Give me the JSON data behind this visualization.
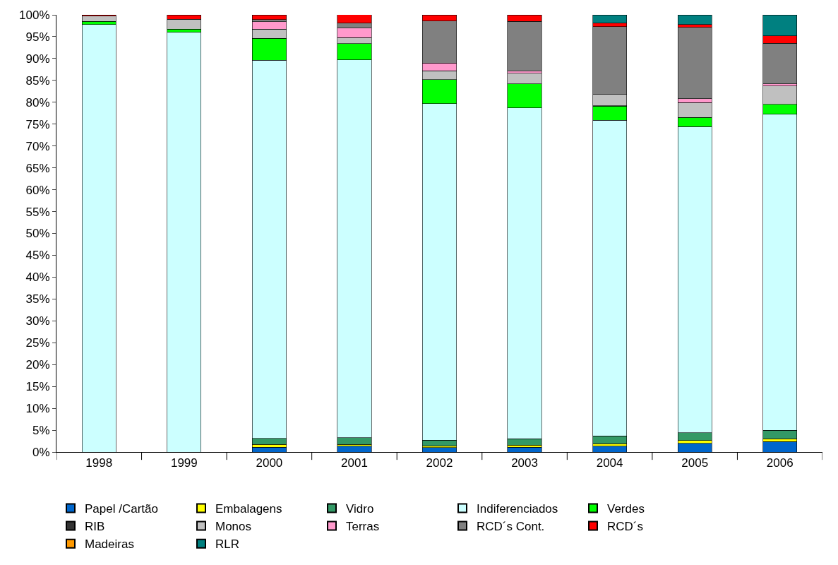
{
  "chart_data": {
    "type": "bar",
    "stacked": true,
    "categories": [
      "1998",
      "1999",
      "2000",
      "2001",
      "2002",
      "2003",
      "2004",
      "2005",
      "2006"
    ],
    "series": [
      {
        "name": "Papel /Cartão",
        "color": "#0066cc",
        "values": [
          null,
          null,
          1.1,
          1.3,
          1.0,
          1.1,
          1.3,
          2.0,
          2.4
        ]
      },
      {
        "name": "Embalagens",
        "color": "#ffff00",
        "values": [
          null,
          null,
          0.6,
          0.4,
          0.4,
          0.5,
          0.6,
          0.6,
          0.6
        ]
      },
      {
        "name": "Vidro",
        "color": "#339966",
        "values": [
          null,
          null,
          1.4,
          1.6,
          1.3,
          1.4,
          1.8,
          1.8,
          2.0
        ]
      },
      {
        "name": "Indiferenciados",
        "color": "#ccffff",
        "values": [
          97.8,
          96.0,
          86.5,
          86.4,
          77.0,
          75.7,
          72.2,
          70.0,
          72.3
        ]
      },
      {
        "name": "Verdes",
        "color": "#00ff00",
        "values": [
          0.7,
          0.7,
          5.0,
          3.7,
          5.5,
          5.5,
          3.2,
          2.1,
          2.2
        ]
      },
      {
        "name": "RIB",
        "color": "#333333",
        "values": [
          null,
          null,
          null,
          null,
          null,
          null,
          0.1,
          null,
          null
        ]
      },
      {
        "name": "Monos",
        "color": "#c0c0c0",
        "values": [
          1.2,
          2.3,
          2.1,
          1.4,
          2.0,
          2.4,
          2.6,
          3.4,
          4.2
        ]
      },
      {
        "name": "Terras",
        "color": "#ff99cc",
        "values": [
          null,
          null,
          1.7,
          2.2,
          1.8,
          0.5,
          null,
          0.9,
          0.5
        ]
      },
      {
        "name": "RCD´s Cont.",
        "color": "#808080",
        "values": [
          null,
          null,
          0.5,
          1.1,
          9.6,
          11.4,
          15.5,
          16.3,
          9.3
        ]
      },
      {
        "name": "RCD´s",
        "color": "#ff0000",
        "values": [
          0.3,
          1.0,
          1.1,
          2.0,
          1.4,
          1.5,
          0.8,
          0.7,
          1.7
        ]
      },
      {
        "name": "Madeiras",
        "color": "#ff9900",
        "values": [
          null,
          null,
          null,
          null,
          null,
          null,
          null,
          null,
          null
        ]
      },
      {
        "name": "RLR",
        "color": "#008080",
        "values": [
          null,
          null,
          null,
          null,
          null,
          null,
          1.9,
          2.2,
          4.8
        ]
      }
    ],
    "ylim": [
      0,
      100
    ],
    "yticks": [
      {
        "value": 0,
        "label": "0%"
      },
      {
        "value": 5,
        "label": "5%"
      },
      {
        "value": 10,
        "label": "10%"
      },
      {
        "value": 15,
        "label": "15%"
      },
      {
        "value": 20,
        "label": "20%"
      },
      {
        "value": 25,
        "label": "25%"
      },
      {
        "value": 30,
        "label": "30%"
      },
      {
        "value": 35,
        "label": "35%"
      },
      {
        "value": 40,
        "label": "40%"
      },
      {
        "value": 45,
        "label": "45%"
      },
      {
        "value": 50,
        "label": "50%"
      },
      {
        "value": 55,
        "label": "55%"
      },
      {
        "value": 60,
        "label": "60%"
      },
      {
        "value": 65,
        "label": "65%"
      },
      {
        "value": 70,
        "label": "70%"
      },
      {
        "value": 75,
        "label": "75%"
      },
      {
        "value": 80,
        "label": "80%"
      },
      {
        "value": 85,
        "label": "85%"
      },
      {
        "value": 90,
        "label": "90%"
      },
      {
        "value": 95,
        "label": "95%"
      },
      {
        "value": 100,
        "label": "100%"
      }
    ],
    "legend": "bottom"
  }
}
